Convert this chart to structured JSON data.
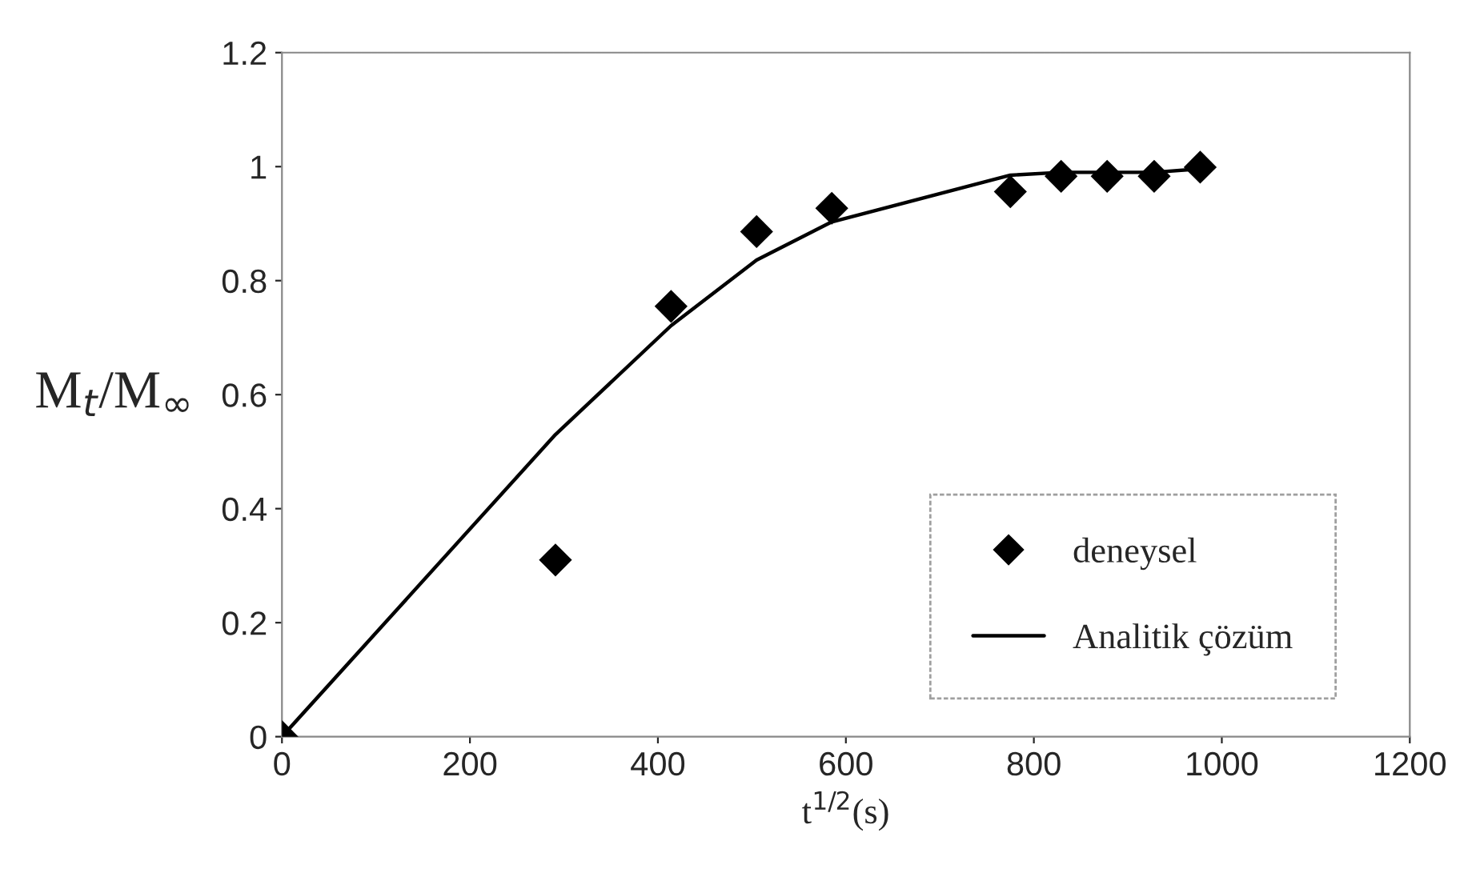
{
  "chart_data": {
    "type": "scatter",
    "xlabel": "t$^{1/2}$(s)",
    "ylabel": "M$_{t}$/M$_{∞}$",
    "xlim": [
      0,
      1200
    ],
    "xticks": [
      0,
      200,
      400,
      600,
      800,
      1000,
      1200
    ],
    "ylim": [
      0,
      1.2
    ],
    "yticks": [
      0,
      0.2,
      0.4,
      0.6,
      0.8,
      1,
      1.2
    ],
    "grid": false,
    "legend": "bottom right",
    "series": [
      {
        "name": "deneysel",
        "marker": "diamond",
        "color": "#000000",
        "x": [
          0,
          291,
          414,
          505,
          585,
          775,
          829,
          878,
          928,
          977
        ],
        "values": [
          0,
          0.31,
          0.755,
          0.886,
          0.927,
          0.956,
          0.983,
          0.983,
          0.983,
          0.999
        ]
      },
      {
        "name": "Analitik çözüm",
        "type": "line",
        "marker": "none",
        "line_style": "solid",
        "color": "#000000",
        "x": [
          0,
          291,
          414,
          505,
          585,
          775,
          829,
          878,
          928,
          977
        ],
        "values": [
          0,
          0.53,
          0.721,
          0.836,
          0.903,
          0.985,
          0.99,
          0.99,
          0.99,
          0.996
        ]
      }
    ]
  }
}
